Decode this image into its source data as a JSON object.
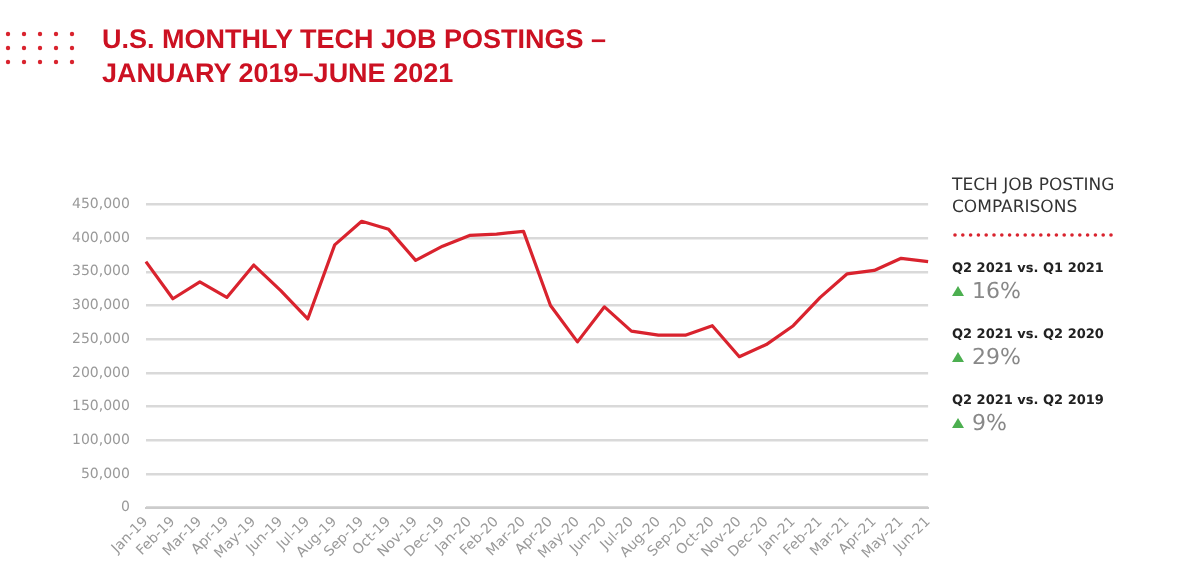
{
  "chart_data": {
    "type": "line",
    "title": "U.S. MONTHLY TECH JOB POSTINGS – JANUARY 2019–JUNE 2021",
    "categories": [
      "Jan-19",
      "Feb-19",
      "Mar-19",
      "Apr-19",
      "May-19",
      "Jun-19",
      "Jul-19",
      "Aug-19",
      "Sep-19",
      "Oct-19",
      "Nov-19",
      "Dec-19",
      "Jan-20",
      "Feb-20",
      "Mar-20",
      "Apr-20",
      "May-20",
      "Jun-20",
      "Jul-20",
      "Aug-20",
      "Sep-20",
      "Oct-20",
      "Nov-20",
      "Dec-20",
      "Jan-21",
      "Feb-21",
      "Mar-21",
      "Apr-21",
      "May-21",
      "Jun-21"
    ],
    "series": [
      {
        "color": "#d9232e",
        "values": [
          365000,
          310000,
          335000,
          312000,
          360000,
          322000,
          280000,
          390000,
          425000,
          413000,
          367000,
          388000,
          404000,
          406000,
          410000,
          300000,
          246000,
          298000,
          262000,
          256000,
          256000,
          270000,
          224000,
          242000,
          270000,
          312000,
          347000,
          352000,
          370000,
          365000
        ]
      }
    ],
    "ylim": [
      0,
      450000
    ],
    "yticks": [
      0,
      {
        "value": 50000,
        "label": "50,000"
      },
      {
        "value": 100000,
        "label": "100,000"
      },
      {
        "value": 150000,
        "label": "150,000"
      },
      {
        "value": 200000,
        "label": "200,000"
      },
      {
        "value": 250000,
        "label": "250,000"
      },
      {
        "value": 300000,
        "label": "300,000"
      },
      {
        "value": 350000,
        "label": "350,000"
      },
      {
        "value": 400000,
        "label": "400,000"
      },
      {
        "value": 450000,
        "label": "450,000"
      }
    ],
    "grid": "y",
    "marker": "none",
    "line_style": "solid",
    "legend": false,
    "annotations": [
      "TECH JOB POSTING COMPARISONS",
      "Q2 2021 vs. Q1 2021",
      "16%",
      "Q2 2021 vs. Q2 2020",
      "29%",
      "Q2 2021 vs. Q2 2019",
      "9%"
    ]
  }
}
